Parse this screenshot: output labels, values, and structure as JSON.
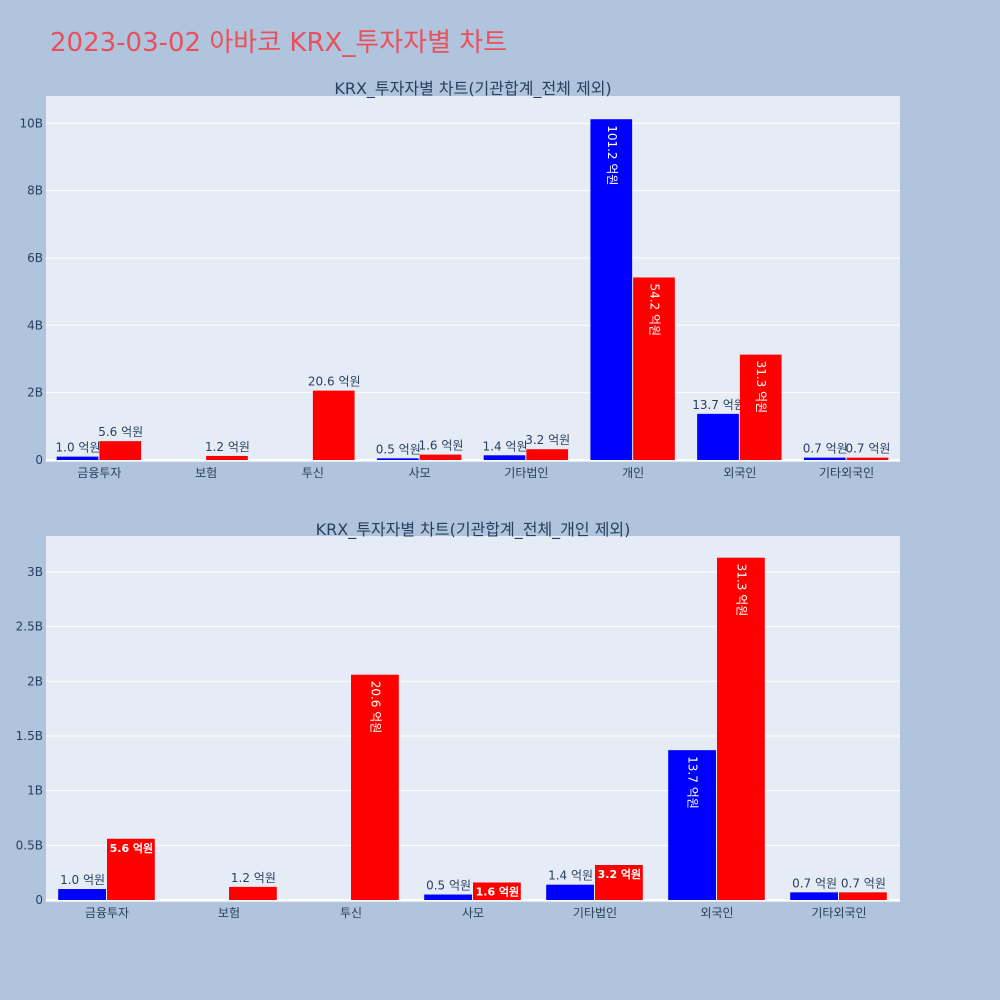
{
  "title": "2023-03-02 아바코 KRX_투자자별 차트",
  "colors": {
    "page_bg": "#b0c4de",
    "plot_bg": "#e5ecf6",
    "grid": "#ffffff",
    "buy": "#0000ff",
    "sell": "#ff0000"
  },
  "chart_data": [
    {
      "type": "bar",
      "title": "KRX_투자자별 차트(기관합계_전체 제외)",
      "categories": [
        "금융투자",
        "보험",
        "투신",
        "사모",
        "기타법인",
        "개인",
        "외국인",
        "기타외국인"
      ],
      "series": [
        {
          "color": "#0000ff",
          "values": [
            100000000,
            0,
            0,
            50000000,
            140000000,
            10120000000,
            1370000000,
            70000000
          ],
          "labels": [
            "1.0 억원",
            "",
            "",
            "0.5 억원",
            "1.4 억원",
            "101.2 억원",
            "13.7 억원",
            "0.7 억원"
          ]
        },
        {
          "color": "#ff0000",
          "values": [
            560000000,
            120000000,
            2060000000,
            160000000,
            320000000,
            5420000000,
            3130000000,
            70000000
          ],
          "labels": [
            "5.6 억원",
            "1.2 억원",
            "20.6 억원",
            "1.6 억원",
            "3.2 억원",
            "54.2 억원",
            "31.3 억원",
            "0.7 억원"
          ]
        }
      ],
      "ylim": [
        0,
        10750000000
      ],
      "yticks": [
        0,
        2000000000,
        4000000000,
        6000000000,
        8000000000,
        10000000000
      ],
      "ytick_labels": [
        "0",
        "2B",
        "4B",
        "6B",
        "8B",
        "10B"
      ],
      "grid": true
    },
    {
      "type": "bar",
      "title": "KRX_투자자별 차트(기관합계_전체_개인 제외)",
      "categories": [
        "금융투자",
        "보험",
        "투신",
        "사모",
        "기타법인",
        "외국인",
        "기타외국인"
      ],
      "series": [
        {
          "color": "#0000ff",
          "values": [
            100000000,
            0,
            0,
            50000000,
            140000000,
            1370000000,
            70000000
          ],
          "labels": [
            "1.0 억원",
            "",
            "",
            "0.5 억원",
            "1.4 억원",
            "13.7 억원",
            "0.7 억원"
          ]
        },
        {
          "color": "#ff0000",
          "values": [
            560000000,
            120000000,
            2060000000,
            160000000,
            320000000,
            3130000000,
            70000000
          ],
          "labels": [
            "5.6 억원",
            "1.2 억원",
            "20.6 억원",
            "1.6 억원",
            "3.2 억원",
            "31.3 억원",
            "0.7 억원"
          ]
        }
      ],
      "ylim": [
        0,
        3310000000
      ],
      "yticks": [
        0,
        500000000,
        1000000000,
        1500000000,
        2000000000,
        2500000000,
        3000000000
      ],
      "ytick_labels": [
        "0",
        "0.5B",
        "1B",
        "1.5B",
        "2B",
        "2.5B",
        "3B"
      ],
      "grid": true
    }
  ]
}
